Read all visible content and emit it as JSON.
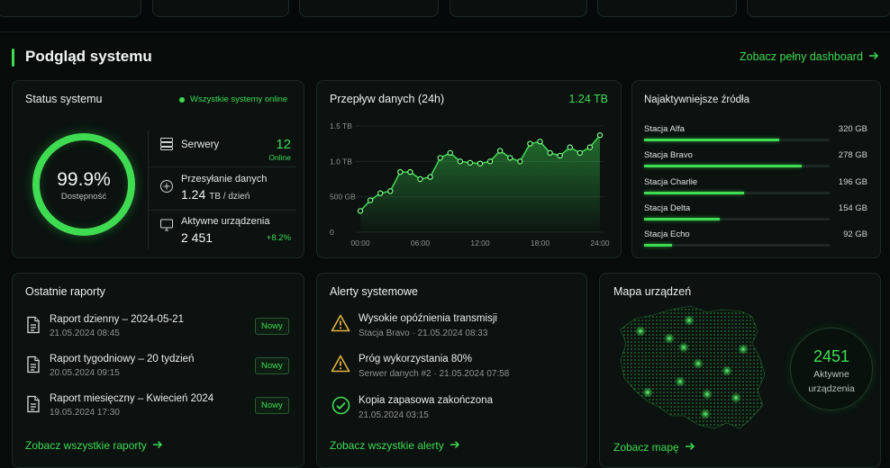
{
  "section": {
    "title": "Podgląd systemu",
    "link": "Zobacz pełny dashboard"
  },
  "status": {
    "title": "Status systemu",
    "online": "Wszystkie systemy online",
    "uptime": "99.9%",
    "uptime_label": "Dostępność",
    "servers_label": "Serwery",
    "servers_value": "12",
    "servers_sub": "Online",
    "transfer_label": "Przesyłanie danych",
    "transfer_value": "1.24",
    "transfer_unit": "TB / dzień",
    "devices_label": "Aktywne urządzenia",
    "devices_value": "2 451",
    "devices_change": "+8.2%"
  },
  "flow": {
    "title": "Przepływ danych (24h)",
    "total": "1.24 TB"
  },
  "chart_data": {
    "type": "area",
    "title": "Przepływ danych (24h)",
    "yticks": [
      "1.5 TB",
      "1.0 TB",
      "500 GB",
      "0"
    ],
    "xticks": [
      "00:00",
      "06:00",
      "12:00",
      "18:00",
      "24:00"
    ],
    "ylim": [
      0,
      1.5
    ],
    "xlim": [
      0,
      24
    ],
    "x": [
      0,
      1,
      2,
      3,
      4,
      5,
      6,
      7,
      8,
      9,
      10,
      11,
      12,
      13,
      14,
      15,
      16,
      17,
      18,
      19,
      20,
      21,
      22,
      23,
      24
    ],
    "values": [
      0.3,
      0.45,
      0.55,
      0.58,
      0.85,
      0.85,
      0.75,
      0.78,
      1.05,
      1.12,
      1.0,
      0.98,
      0.97,
      1.0,
      1.15,
      1.05,
      1.0,
      1.25,
      1.28,
      1.12,
      1.08,
      1.2,
      1.12,
      1.2,
      1.37
    ],
    "grid": true
  },
  "sources": {
    "title": "Najaktywniejsze źródła",
    "items": [
      {
        "name": "Stacja Alfa",
        "value": "320 GB",
        "level": 0.73
      },
      {
        "name": "Stacja Bravo",
        "value": "278 GB",
        "level": 0.85
      },
      {
        "name": "Stacja Charlie",
        "value": "196 GB",
        "level": 0.54
      },
      {
        "name": "Stacja Delta",
        "value": "154 GB",
        "level": 0.41
      },
      {
        "name": "Stacja Echo",
        "value": "92 GB",
        "level": 0.15
      }
    ]
  },
  "reports": {
    "title": "Ostatnie raporty",
    "items": [
      {
        "title": "Raport dzienny – 2024-05-21",
        "date": "21.05.2024 08:45",
        "badge": "Nowy"
      },
      {
        "title": "Raport tygodniowy – 20 tydzień",
        "date": "20.05.2024 09:15",
        "badge": "Nowy"
      },
      {
        "title": "Raport miesięczny – Kwiecień 2024",
        "date": "19.05.2024 17:30",
        "badge": "Nowy"
      }
    ],
    "link": "Zobacz wszystkie raporty"
  },
  "alerts": {
    "title": "Alerty systemowe",
    "items": [
      {
        "title": "Wysokie opóźnienia transmisji",
        "sub": "Stacja Bravo · 21.05.2024 08:33",
        "icon": "warning-icon"
      },
      {
        "title": "Próg wykorzystania 80%",
        "sub": "Serwer danych #2 · 21.05.2024 07:58",
        "icon": "warning-icon"
      },
      {
        "title": "Kopia zapasowa zakończona",
        "sub": "21.05.2024 03:15",
        "icon": "check-circle-icon"
      }
    ],
    "link": "Zobacz wszystkie alerty"
  },
  "map": {
    "title": "Mapa urządzeń",
    "count": "2451",
    "label_line1": "Aktywne",
    "label_line2": "urządzenia",
    "link": "Zobacz mapę"
  },
  "colors": {
    "accent": "#3fdc52",
    "warning": "#e3b23c",
    "background": "#05090a",
    "card": "#0b1210"
  }
}
